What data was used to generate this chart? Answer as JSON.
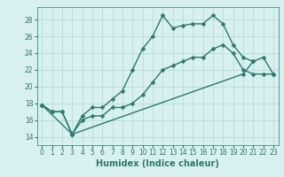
{
  "s1_x": [
    0,
    1,
    2,
    3,
    4,
    5,
    6,
    7,
    8,
    9,
    10,
    11,
    12,
    13,
    14,
    15,
    16,
    17,
    18,
    19,
    20,
    21
  ],
  "s1_y": [
    17.8,
    17.0,
    17.0,
    14.3,
    16.5,
    17.5,
    17.5,
    18.5,
    19.5,
    22.0,
    24.5,
    26.0,
    28.5,
    27.0,
    27.3,
    27.5,
    27.5,
    28.5,
    27.5,
    25.0,
    23.5,
    23.0
  ],
  "s2_x": [
    0,
    1,
    2,
    3,
    4,
    5,
    6,
    7,
    8,
    9,
    10,
    11,
    12,
    13,
    14,
    15,
    16,
    17,
    18,
    19,
    20,
    21,
    22,
    23
  ],
  "s2_y": [
    17.8,
    17.0,
    17.0,
    14.3,
    16.0,
    16.5,
    16.5,
    17.5,
    17.5,
    18.0,
    19.0,
    20.5,
    22.0,
    22.5,
    23.0,
    23.5,
    23.5,
    24.5,
    25.0,
    24.0,
    22.0,
    21.5,
    21.5,
    21.5
  ],
  "s3_x": [
    0,
    3,
    20,
    21,
    22,
    23
  ],
  "s3_y": [
    17.8,
    14.3,
    21.5,
    23.0,
    23.5,
    21.5
  ],
  "line_color": "#2a7a6f",
  "bg_color": "#d8f0f0",
  "grid_color": "#b0d8d8",
  "xlabel": "Humidex (Indice chaleur)",
  "xlim": [
    -0.5,
    23.5
  ],
  "ylim": [
    13.0,
    29.5
  ],
  "yticks": [
    14,
    16,
    18,
    20,
    22,
    24,
    26,
    28
  ],
  "xticks": [
    0,
    1,
    2,
    3,
    4,
    5,
    6,
    7,
    8,
    9,
    10,
    11,
    12,
    13,
    14,
    15,
    16,
    17,
    18,
    19,
    20,
    21,
    22,
    23
  ],
  "markersize": 2.5,
  "linewidth": 1.0,
  "xlabel_fontsize": 7,
  "tick_fontsize": 5.5
}
